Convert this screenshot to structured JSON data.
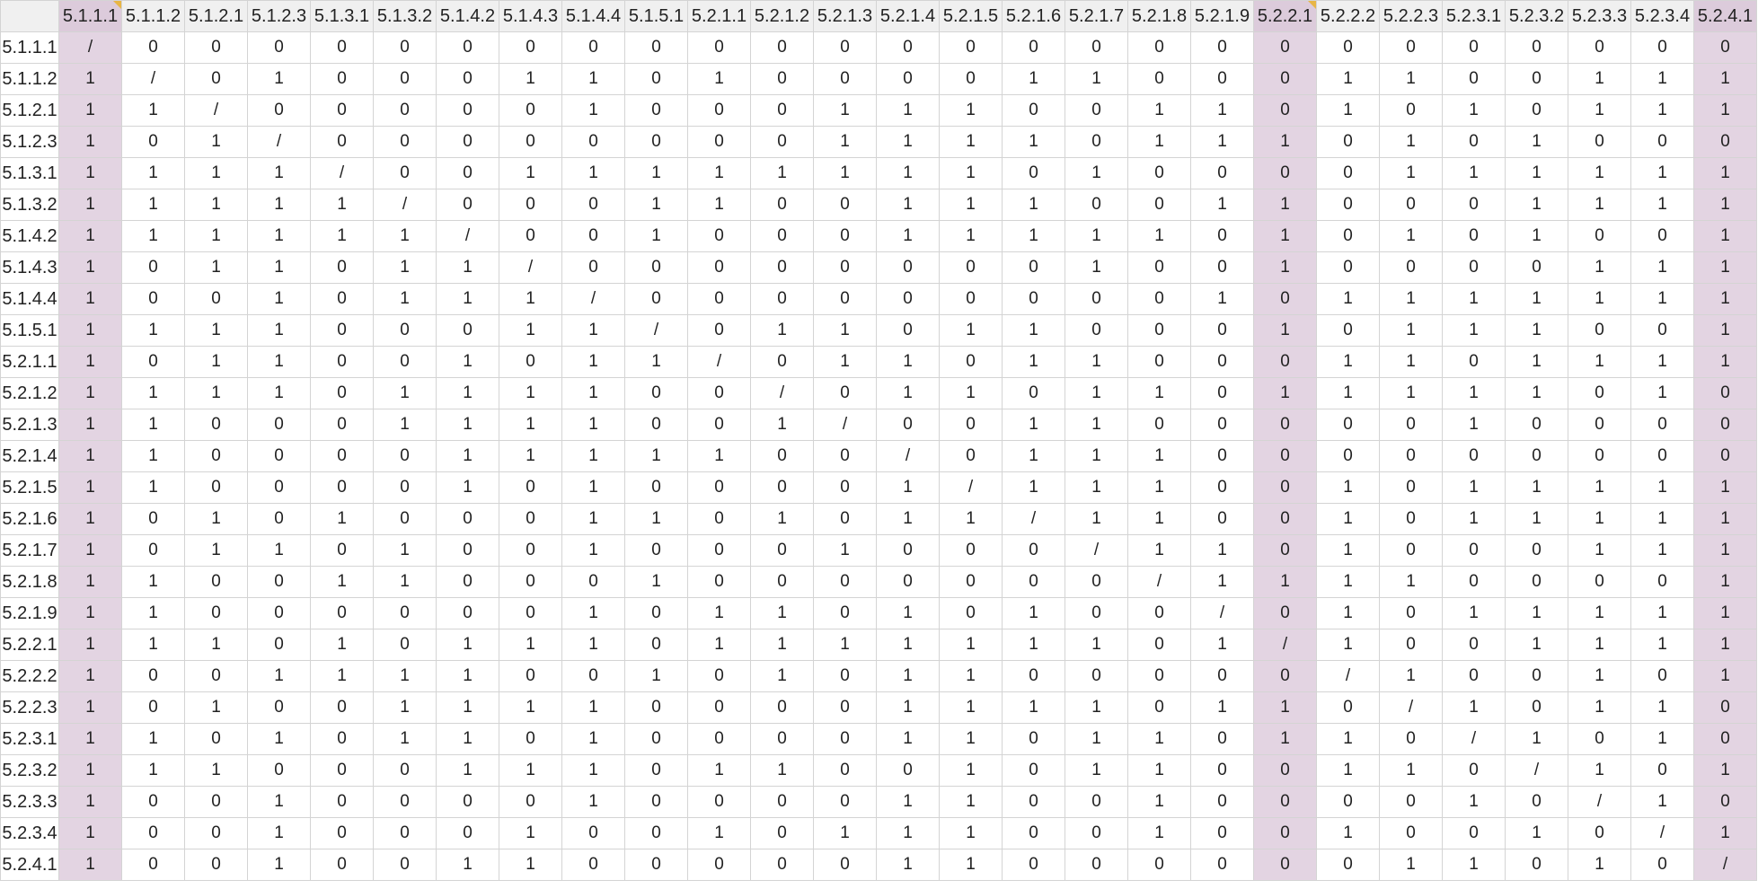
{
  "columns": [
    "5.1.1.1",
    "5.1.1.2",
    "5.1.2.1",
    "5.1.2.3",
    "5.1.3.1",
    "5.1.3.2",
    "5.1.4.2",
    "5.1.4.3",
    "5.1.4.4",
    "5.1.5.1",
    "5.2.1.1",
    "5.2.1.2",
    "5.2.1.3",
    "5.2.1.4",
    "5.2.1.5",
    "5.2.1.6",
    "5.2.1.7",
    "5.2.1.8",
    "5.2.1.9",
    "5.2.2.1",
    "5.2.2.2",
    "5.2.2.3",
    "5.2.3.1",
    "5.2.3.2",
    "5.2.3.3",
    "5.2.3.4",
    "5.2.4.1"
  ],
  "highlighted_columns": [
    "5.1.1.1",
    "5.2.2.1",
    "5.2.4.1"
  ],
  "highlight_color": "#e3d4e2",
  "comment_flag_color": "#e8b646",
  "comment_flag_columns": [
    "5.1.1.1",
    "5.2.2.1"
  ],
  "rows": [
    {
      "label": "5.1.1.1",
      "cells": [
        "/",
        "0",
        "0",
        "0",
        "0",
        "0",
        "0",
        "0",
        "0",
        "0",
        "0",
        "0",
        "0",
        "0",
        "0",
        "0",
        "0",
        "0",
        "0",
        "0",
        "0",
        "0",
        "0",
        "0",
        "0",
        "0",
        "0"
      ]
    },
    {
      "label": "5.1.1.2",
      "cells": [
        "1",
        "/",
        "0",
        "1",
        "0",
        "0",
        "0",
        "1",
        "1",
        "0",
        "1",
        "0",
        "0",
        "0",
        "0",
        "1",
        "1",
        "0",
        "0",
        "0",
        "1",
        "1",
        "0",
        "0",
        "1",
        "1",
        "1"
      ]
    },
    {
      "label": "5.1.2.1",
      "cells": [
        "1",
        "1",
        "/",
        "0",
        "0",
        "0",
        "0",
        "0",
        "1",
        "0",
        "0",
        "0",
        "1",
        "1",
        "1",
        "0",
        "0",
        "1",
        "1",
        "0",
        "1",
        "0",
        "1",
        "0",
        "1",
        "1",
        "1"
      ]
    },
    {
      "label": "5.1.2.3",
      "cells": [
        "1",
        "0",
        "1",
        "/",
        "0",
        "0",
        "0",
        "0",
        "0",
        "0",
        "0",
        "0",
        "1",
        "1",
        "1",
        "1",
        "0",
        "1",
        "1",
        "1",
        "0",
        "1",
        "0",
        "1",
        "0",
        "0",
        "0"
      ]
    },
    {
      "label": "5.1.3.1",
      "cells": [
        "1",
        "1",
        "1",
        "1",
        "/",
        "0",
        "0",
        "1",
        "1",
        "1",
        "1",
        "1",
        "1",
        "1",
        "1",
        "0",
        "1",
        "0",
        "0",
        "0",
        "0",
        "1",
        "1",
        "1",
        "1",
        "1",
        "1"
      ]
    },
    {
      "label": "5.1.3.2",
      "cells": [
        "1",
        "1",
        "1",
        "1",
        "1",
        "/",
        "0",
        "0",
        "0",
        "1",
        "1",
        "0",
        "0",
        "1",
        "1",
        "1",
        "0",
        "0",
        "1",
        "1",
        "0",
        "0",
        "0",
        "1",
        "1",
        "1",
        "1"
      ]
    },
    {
      "label": "5.1.4.2",
      "cells": [
        "1",
        "1",
        "1",
        "1",
        "1",
        "1",
        "/",
        "0",
        "0",
        "1",
        "0",
        "0",
        "0",
        "1",
        "1",
        "1",
        "1",
        "1",
        "0",
        "1",
        "0",
        "1",
        "0",
        "1",
        "0",
        "0",
        "1"
      ]
    },
    {
      "label": "5.1.4.3",
      "cells": [
        "1",
        "0",
        "1",
        "1",
        "0",
        "1",
        "1",
        "/",
        "0",
        "0",
        "0",
        "0",
        "0",
        "0",
        "0",
        "0",
        "1",
        "0",
        "0",
        "1",
        "0",
        "0",
        "0",
        "0",
        "1",
        "1",
        "1"
      ]
    },
    {
      "label": "5.1.4.4",
      "cells": [
        "1",
        "0",
        "0",
        "1",
        "0",
        "1",
        "1",
        "1",
        "/",
        "0",
        "0",
        "0",
        "0",
        "0",
        "0",
        "0",
        "0",
        "0",
        "1",
        "0",
        "1",
        "1",
        "1",
        "1",
        "1",
        "1",
        "1"
      ]
    },
    {
      "label": "5.1.5.1",
      "cells": [
        "1",
        "1",
        "1",
        "1",
        "0",
        "0",
        "0",
        "1",
        "1",
        "/",
        "0",
        "1",
        "1",
        "0",
        "1",
        "1",
        "0",
        "0",
        "0",
        "1",
        "0",
        "1",
        "1",
        "1",
        "0",
        "0",
        "1"
      ]
    },
    {
      "label": "5.2.1.1",
      "cells": [
        "1",
        "0",
        "1",
        "1",
        "0",
        "0",
        "1",
        "0",
        "1",
        "1",
        "/",
        "0",
        "1",
        "1",
        "0",
        "1",
        "1",
        "0",
        "0",
        "0",
        "1",
        "1",
        "0",
        "1",
        "1",
        "1",
        "1"
      ]
    },
    {
      "label": "5.2.1.2",
      "cells": [
        "1",
        "1",
        "1",
        "1",
        "0",
        "1",
        "1",
        "1",
        "1",
        "0",
        "0",
        "/",
        "0",
        "1",
        "1",
        "0",
        "1",
        "1",
        "0",
        "1",
        "1",
        "1",
        "1",
        "1",
        "0",
        "1",
        "0"
      ]
    },
    {
      "label": "5.2.1.3",
      "cells": [
        "1",
        "1",
        "0",
        "0",
        "0",
        "1",
        "1",
        "1",
        "1",
        "0",
        "0",
        "1",
        "/",
        "0",
        "0",
        "1",
        "1",
        "0",
        "0",
        "0",
        "0",
        "0",
        "1",
        "0",
        "0",
        "0",
        "0"
      ]
    },
    {
      "label": "5.2.1.4",
      "cells": [
        "1",
        "1",
        "0",
        "0",
        "0",
        "0",
        "1",
        "1",
        "1",
        "1",
        "1",
        "0",
        "0",
        "/",
        "0",
        "1",
        "1",
        "1",
        "0",
        "0",
        "0",
        "0",
        "0",
        "0",
        "0",
        "0",
        "0"
      ]
    },
    {
      "label": "5.2.1.5",
      "cells": [
        "1",
        "1",
        "0",
        "0",
        "0",
        "0",
        "1",
        "0",
        "1",
        "0",
        "0",
        "0",
        "0",
        "1",
        "/",
        "1",
        "1",
        "1",
        "0",
        "0",
        "1",
        "0",
        "1",
        "1",
        "1",
        "1",
        "1"
      ]
    },
    {
      "label": "5.2.1.6",
      "cells": [
        "1",
        "0",
        "1",
        "0",
        "1",
        "0",
        "0",
        "0",
        "1",
        "1",
        "0",
        "1",
        "0",
        "1",
        "1",
        "/",
        "1",
        "1",
        "0",
        "0",
        "1",
        "0",
        "1",
        "1",
        "1",
        "1",
        "1"
      ]
    },
    {
      "label": "5.2.1.7",
      "cells": [
        "1",
        "0",
        "1",
        "1",
        "0",
        "1",
        "0",
        "0",
        "1",
        "0",
        "0",
        "0",
        "1",
        "0",
        "0",
        "0",
        "/",
        "1",
        "1",
        "0",
        "1",
        "0",
        "0",
        "0",
        "1",
        "1",
        "1"
      ]
    },
    {
      "label": "5.2.1.8",
      "cells": [
        "1",
        "1",
        "0",
        "0",
        "1",
        "1",
        "0",
        "0",
        "0",
        "1",
        "0",
        "0",
        "0",
        "0",
        "0",
        "0",
        "0",
        "/",
        "1",
        "1",
        "1",
        "1",
        "0",
        "0",
        "0",
        "0",
        "1"
      ]
    },
    {
      "label": "5.2.1.9",
      "cells": [
        "1",
        "1",
        "0",
        "0",
        "0",
        "0",
        "0",
        "0",
        "1",
        "0",
        "1",
        "1",
        "0",
        "1",
        "0",
        "1",
        "0",
        "0",
        "/",
        "0",
        "1",
        "0",
        "1",
        "1",
        "1",
        "1",
        "1"
      ]
    },
    {
      "label": "5.2.2.1",
      "cells": [
        "1",
        "1",
        "1",
        "0",
        "1",
        "0",
        "1",
        "1",
        "1",
        "0",
        "1",
        "1",
        "1",
        "1",
        "1",
        "1",
        "1",
        "0",
        "1",
        "/",
        "1",
        "0",
        "0",
        "1",
        "1",
        "1",
        "1"
      ]
    },
    {
      "label": "5.2.2.2",
      "cells": [
        "1",
        "0",
        "0",
        "1",
        "1",
        "1",
        "1",
        "0",
        "0",
        "1",
        "0",
        "1",
        "0",
        "1",
        "1",
        "0",
        "0",
        "0",
        "0",
        "0",
        "/",
        "1",
        "0",
        "0",
        "1",
        "0",
        "1"
      ]
    },
    {
      "label": "5.2.2.3",
      "cells": [
        "1",
        "0",
        "1",
        "0",
        "0",
        "1",
        "1",
        "1",
        "1",
        "0",
        "0",
        "0",
        "0",
        "1",
        "1",
        "1",
        "1",
        "0",
        "1",
        "1",
        "0",
        "/",
        "1",
        "0",
        "1",
        "1",
        "0"
      ]
    },
    {
      "label": "5.2.3.1",
      "cells": [
        "1",
        "1",
        "0",
        "1",
        "0",
        "1",
        "1",
        "0",
        "1",
        "0",
        "0",
        "0",
        "0",
        "1",
        "1",
        "0",
        "1",
        "1",
        "0",
        "1",
        "1",
        "0",
        "/",
        "1",
        "0",
        "1",
        "0"
      ]
    },
    {
      "label": "5.2.3.2",
      "cells": [
        "1",
        "1",
        "1",
        "0",
        "0",
        "0",
        "1",
        "1",
        "1",
        "0",
        "1",
        "1",
        "0",
        "0",
        "1",
        "0",
        "1",
        "1",
        "0",
        "0",
        "1",
        "1",
        "0",
        "/",
        "1",
        "0",
        "1"
      ]
    },
    {
      "label": "5.2.3.3",
      "cells": [
        "1",
        "0",
        "0",
        "1",
        "0",
        "0",
        "0",
        "0",
        "1",
        "0",
        "0",
        "0",
        "0",
        "1",
        "1",
        "0",
        "0",
        "1",
        "0",
        "0",
        "0",
        "0",
        "1",
        "0",
        "/",
        "1",
        "0"
      ]
    },
    {
      "label": "5.2.3.4",
      "cells": [
        "1",
        "0",
        "0",
        "1",
        "0",
        "0",
        "0",
        "1",
        "0",
        "0",
        "1",
        "0",
        "1",
        "1",
        "1",
        "0",
        "0",
        "1",
        "0",
        "0",
        "1",
        "0",
        "0",
        "1",
        "0",
        "/",
        "1"
      ]
    },
    {
      "label": "5.2.4.1",
      "cells": [
        "1",
        "0",
        "0",
        "1",
        "0",
        "0",
        "1",
        "1",
        "0",
        "0",
        "0",
        "0",
        "0",
        "1",
        "1",
        "0",
        "0",
        "0",
        "0",
        "0",
        "0",
        "1",
        "1",
        "0",
        "1",
        "0",
        "/"
      ]
    }
  ]
}
